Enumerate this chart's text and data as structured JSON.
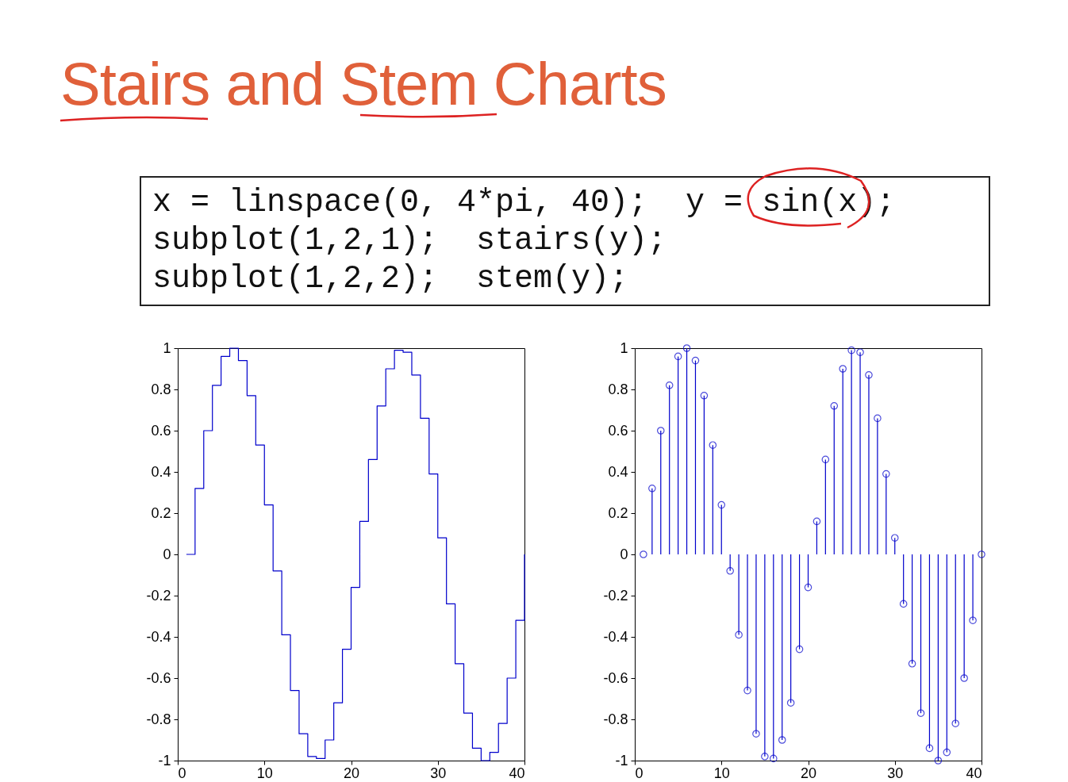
{
  "chart_data": [
    {
      "type": "step",
      "title": "Stairs and Stem Charts",
      "annotations": [
        "x = linspace(0, 4*pi, 40);  y = sin(x);",
        "subplot(1,2,1);  stairs(y);",
        "subplot(1,2,2);  stem(y);"
      ],
      "x": [
        1,
        2,
        3,
        4,
        5,
        6,
        7,
        8,
        9,
        10,
        11,
        12,
        13,
        14,
        15,
        16,
        17,
        18,
        19,
        20,
        21,
        22,
        23,
        24,
        25,
        26,
        27,
        28,
        29,
        30,
        31,
        32,
        33,
        34,
        35,
        36,
        37,
        38,
        39,
        40
      ],
      "series": [
        {
          "color": "#0000cc",
          "values": [
            0,
            0.32,
            0.6,
            0.82,
            0.96,
            1,
            0.94,
            0.77,
            0.53,
            0.24,
            -0.08,
            -0.39,
            -0.66,
            -0.87,
            -0.98,
            -0.99,
            -0.9,
            -0.72,
            -0.46,
            -0.16,
            0.16,
            0.46,
            0.72,
            0.9,
            0.99,
            0.98,
            0.87,
            0.66,
            0.39,
            0.08,
            -0.24,
            -0.53,
            -0.77,
            -0.94,
            -1,
            -0.96,
            -0.82,
            -0.6,
            -0.32,
            0
          ]
        }
      ],
      "xlim": [
        0,
        40
      ],
      "xticks": [
        0,
        10,
        20,
        30,
        40
      ],
      "ylim": [
        -1,
        1
      ],
      "yticks": [
        -1,
        -0.8,
        -0.6,
        -0.4,
        -0.2,
        0,
        0.2,
        0.4,
        0.6,
        0.8,
        1
      ]
    },
    {
      "type": "lollipop",
      "marker": "circle",
      "x": [
        1,
        2,
        3,
        4,
        5,
        6,
        7,
        8,
        9,
        10,
        11,
        12,
        13,
        14,
        15,
        16,
        17,
        18,
        19,
        20,
        21,
        22,
        23,
        24,
        25,
        26,
        27,
        28,
        29,
        30,
        31,
        32,
        33,
        34,
        35,
        36,
        37,
        38,
        39,
        40
      ],
      "series": [
        {
          "color": "#0000cc",
          "values": [
            0,
            0.32,
            0.6,
            0.82,
            0.96,
            1,
            0.94,
            0.77,
            0.53,
            0.24,
            -0.08,
            -0.39,
            -0.66,
            -0.87,
            -0.98,
            -0.99,
            -0.9,
            -0.72,
            -0.46,
            -0.16,
            0.16,
            0.46,
            0.72,
            0.9,
            0.99,
            0.98,
            0.87,
            0.66,
            0.39,
            0.08,
            -0.24,
            -0.53,
            -0.77,
            -0.94,
            -1,
            -0.96,
            -0.82,
            -0.6,
            -0.32,
            0
          ]
        }
      ],
      "xlim": [
        0,
        40
      ],
      "xticks": [
        0,
        10,
        20,
        30,
        40
      ],
      "ylim": [
        -1,
        1
      ],
      "yticks": [
        -1,
        -0.8,
        -0.6,
        -0.4,
        -0.2,
        0,
        0.2,
        0.4,
        0.6,
        0.8,
        1
      ]
    }
  ]
}
